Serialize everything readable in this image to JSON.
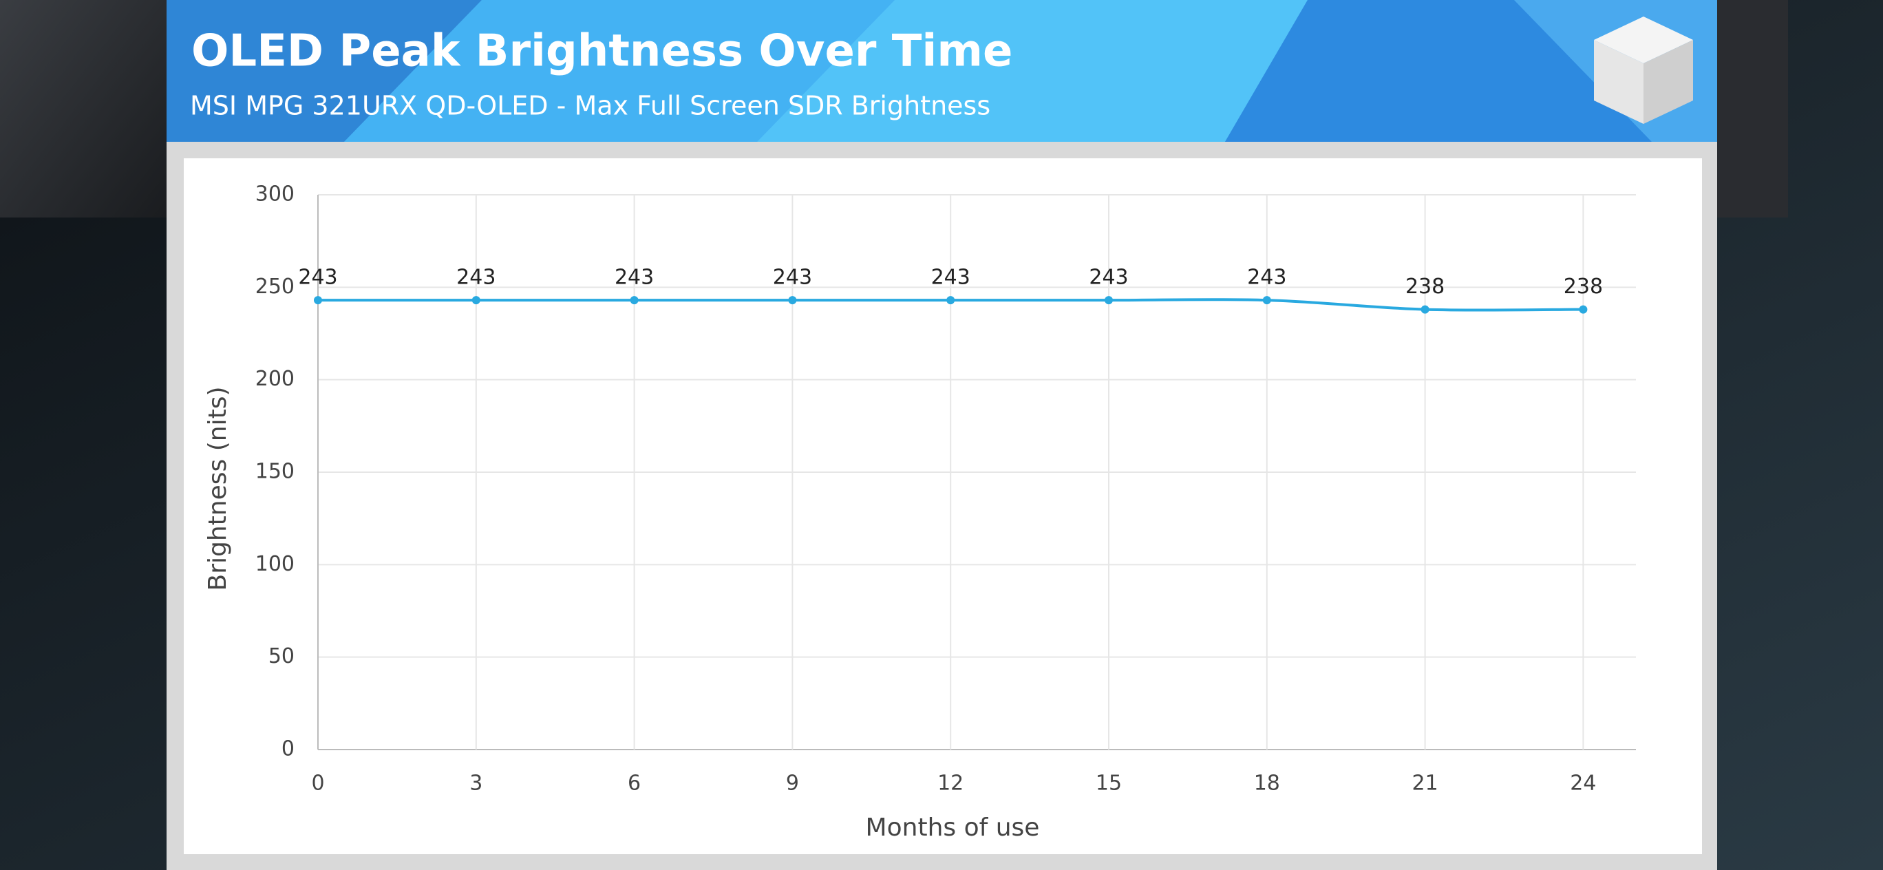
{
  "chart_data": {
    "type": "line",
    "title": "OLED Peak Brightness Over Time",
    "subtitle": "MSI MPG 321URX QD-OLED - Max Full Screen SDR Brightness",
    "x_label": "Months of use",
    "y_label": "Brightness (nits)",
    "x": [
      0,
      3,
      6,
      9,
      12,
      15,
      18,
      21,
      24
    ],
    "values": [
      243,
      243,
      243,
      243,
      243,
      243,
      243,
      238,
      238
    ],
    "color": "#29a9e0",
    "xlim": [
      0,
      25
    ],
    "xticks": [
      0,
      3,
      6,
      9,
      12,
      15,
      18,
      21,
      24
    ],
    "ylim": [
      0,
      300
    ],
    "yticks": [
      0,
      50,
      100,
      150,
      200,
      250,
      300
    ],
    "grid": true
  }
}
